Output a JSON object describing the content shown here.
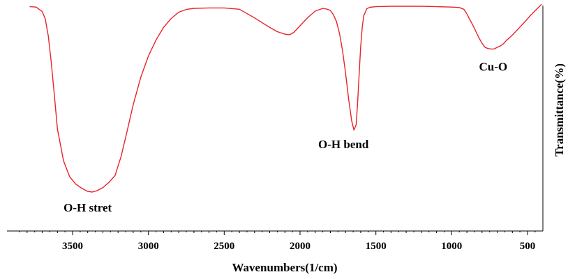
{
  "chart_data": {
    "type": "line",
    "xlabel": "Wavenumbers(1/cm)",
    "ylabel": "Transmittance(%)",
    "x_reversed": true,
    "xlim": [
      3900,
      400
    ],
    "ylim": [
      0,
      100
    ],
    "x_ticks": [
      3500,
      3000,
      2500,
      2000,
      1500,
      1000,
      500
    ],
    "x_tick_labels": [
      "3500",
      "3000",
      "2500",
      "2000",
      "1500",
      "1000",
      "500"
    ],
    "grid": false,
    "series": [
      {
        "color": "#e8232a",
        "x": [
          3780,
          3740,
          3700,
          3680,
          3660,
          3640,
          3620,
          3600,
          3560,
          3520,
          3480,
          3440,
          3400,
          3370,
          3340,
          3300,
          3260,
          3220,
          3180,
          3140,
          3100,
          3050,
          3000,
          2950,
          2900,
          2850,
          2800,
          2750,
          2700,
          2600,
          2500,
          2400,
          2300,
          2200,
          2150,
          2100,
          2070,
          2040,
          2000,
          1950,
          1900,
          1850,
          1820,
          1800,
          1780,
          1760,
          1740,
          1720,
          1700,
          1680,
          1660,
          1645,
          1630,
          1620,
          1610,
          1600,
          1590,
          1580,
          1560,
          1540,
          1500,
          1450,
          1400,
          1300,
          1200,
          1100,
          1000,
          950,
          920,
          900,
          880,
          860,
          840,
          820,
          800,
          780,
          760,
          740,
          720,
          700,
          680,
          660,
          640,
          600,
          560,
          520,
          480,
          440,
          410
        ],
        "y": [
          98.8,
          98.6,
          96.5,
          93.0,
          85.0,
          72.0,
          57.0,
          41.0,
          26.0,
          18.5,
          15.0,
          13.0,
          11.5,
          11.2,
          11.8,
          13.3,
          15.8,
          19.0,
          28.0,
          40.0,
          52.5,
          65.5,
          75.5,
          83.0,
          89.0,
          93.2,
          96.2,
          97.5,
          98.0,
          98.2,
          98.2,
          97.6,
          93.5,
          89.0,
          87.0,
          85.8,
          85.5,
          86.7,
          89.8,
          93.6,
          96.7,
          98.0,
          97.6,
          97.0,
          95.0,
          91.8,
          86.2,
          78.0,
          67.5,
          55.5,
          45.0,
          40.5,
          43.0,
          54.0,
          67.5,
          80.0,
          89.0,
          94.5,
          97.8,
          98.5,
          98.8,
          98.9,
          99.0,
          99.0,
          99.0,
          98.8,
          98.6,
          98.4,
          97.6,
          95.4,
          92.6,
          90.0,
          87.0,
          84.0,
          81.5,
          79.6,
          79.0,
          78.8,
          78.8,
          79.6,
          80.2,
          81.2,
          82.8,
          85.4,
          88.4,
          91.5,
          94.7,
          97.6,
          99.8
        ]
      }
    ],
    "annotations": [
      {
        "text": "O-H stret",
        "x": 3400,
        "y": 11.2
      },
      {
        "text": "O-H bend",
        "x": 1645,
        "y": 40.5
      },
      {
        "text": "Cu-O",
        "x": 740,
        "y": 78.8
      }
    ]
  }
}
